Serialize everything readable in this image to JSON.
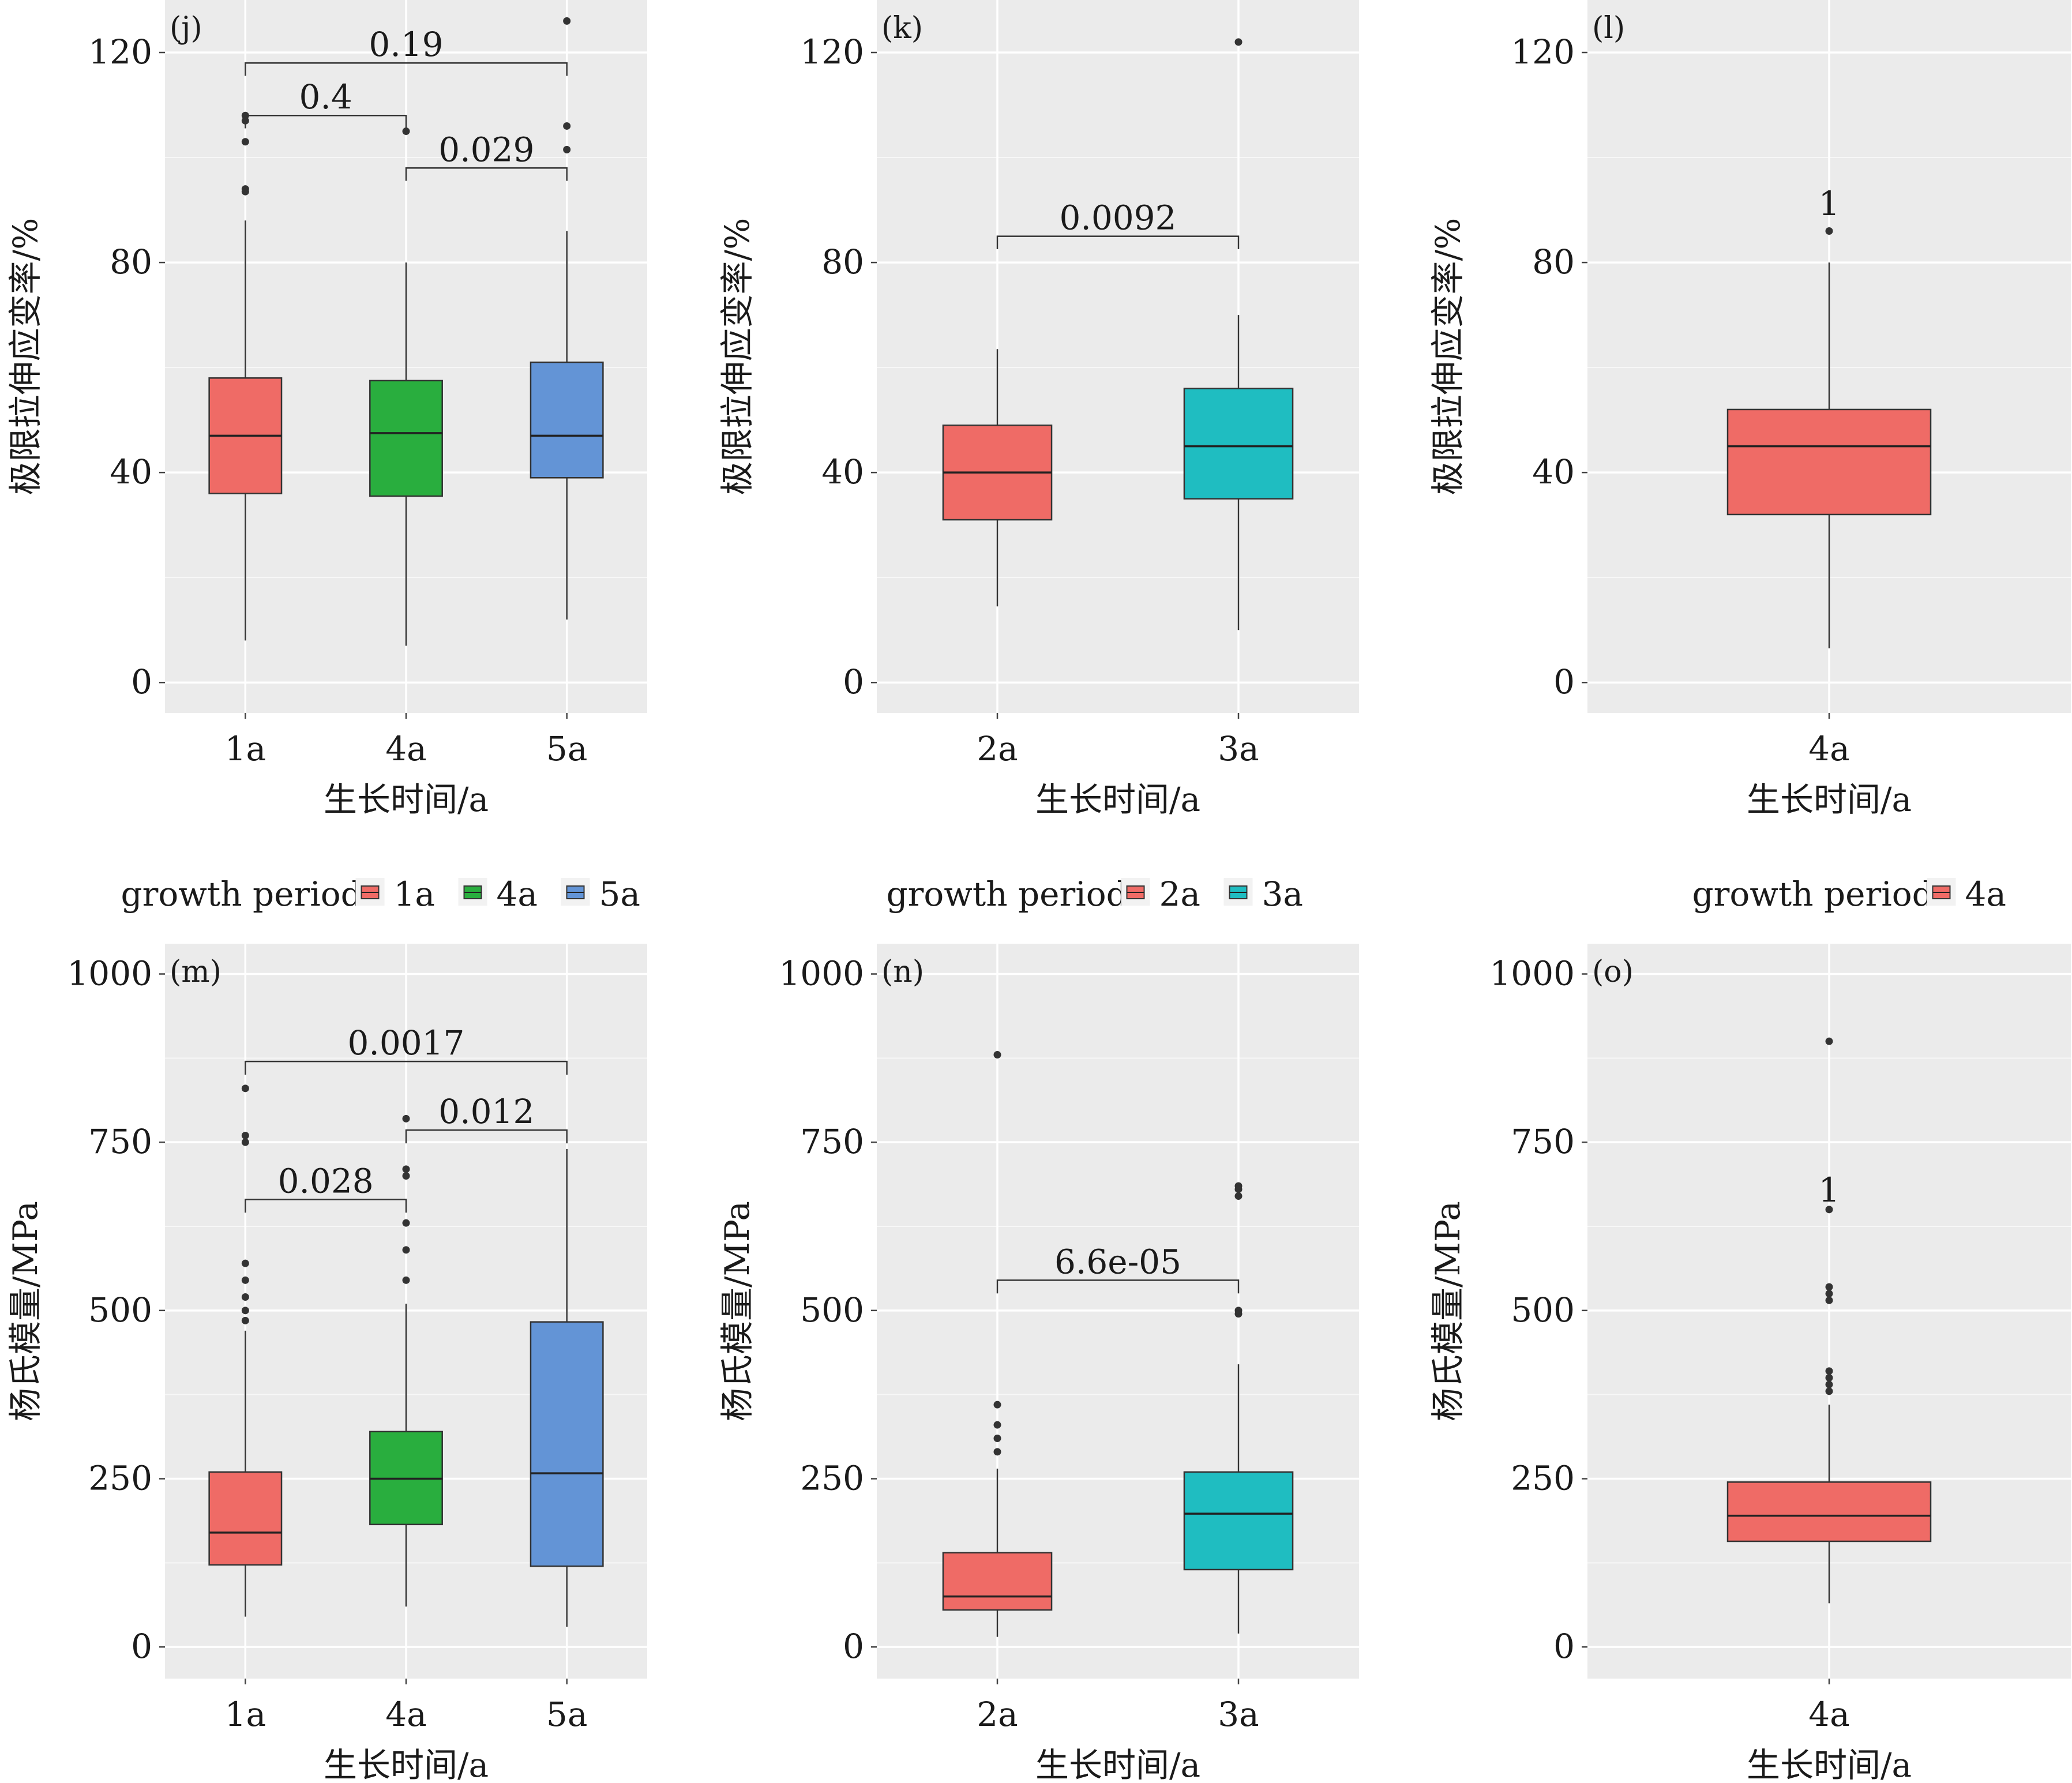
{
  "chart_data": [
    {
      "id": "j",
      "type": "box",
      "tag": "(j)",
      "xlabel": "生长时间/a",
      "ylabel": "极限拉伸应变率/%",
      "ylim": [
        -5.8,
        130
      ],
      "yticks": [
        0,
        40,
        80,
        120
      ],
      "categories": [
        "1a",
        "4a",
        "5a"
      ],
      "fills": [
        "#ef6b66",
        "#29ae3e",
        "#6394d6"
      ],
      "boxes": [
        {
          "q1": 36,
          "median": 47,
          "q3": 58,
          "lo": 8,
          "hi": 88,
          "outliers": [
            93.5,
            94,
            103,
            107,
            108
          ]
        },
        {
          "q1": 35.5,
          "median": 47.5,
          "q3": 57.5,
          "lo": 7,
          "hi": 80,
          "outliers": [
            105
          ]
        },
        {
          "q1": 39,
          "median": 47,
          "q3": 61,
          "lo": 12,
          "hi": 86,
          "outliers": [
            101.5,
            106,
            126
          ]
        }
      ],
      "comparisons": [
        {
          "a": 0,
          "b": 1,
          "label": "0.4",
          "y": 108
        },
        {
          "a": 1,
          "b": 2,
          "label": "0.029",
          "y": 98
        },
        {
          "a": 0,
          "b": 2,
          "label": "0.19",
          "y": 118
        }
      ]
    },
    {
      "id": "k",
      "type": "box",
      "tag": "(k)",
      "xlabel": "生长时间/a",
      "ylabel": "极限拉伸应变率/%",
      "ylim": [
        -5.8,
        130
      ],
      "yticks": [
        0,
        40,
        80,
        120
      ],
      "categories": [
        "2a",
        "3a"
      ],
      "fills": [
        "#ef6b66",
        "#1fbdc1"
      ],
      "boxes": [
        {
          "q1": 31,
          "median": 40,
          "q3": 49,
          "lo": 14.5,
          "hi": 63.5,
          "outliers": []
        },
        {
          "q1": 35,
          "median": 45,
          "q3": 56,
          "lo": 10,
          "hi": 70,
          "outliers": [
            122
          ]
        }
      ],
      "comparisons": [
        {
          "a": 0,
          "b": 1,
          "label": "0.0092",
          "y": 85
        }
      ]
    },
    {
      "id": "l",
      "type": "box",
      "tag": "(l)",
      "xlabel": "生长时间/a",
      "ylabel": "极限拉伸应变率/%",
      "ylim": [
        -5.8,
        130
      ],
      "yticks": [
        0,
        40,
        80,
        120
      ],
      "categories": [
        "4a"
      ],
      "fills": [
        "#ef6b66"
      ],
      "boxes": [
        {
          "q1": 32,
          "median": 45,
          "q3": 52,
          "lo": 6.5,
          "hi": 80,
          "outliers": [
            86
          ]
        }
      ],
      "comparisons": [],
      "annotations": [
        {
          "label": "1",
          "y": 89
        }
      ]
    },
    {
      "id": "m",
      "type": "box",
      "tag": "(m)",
      "xlabel": "生长时间/a",
      "ylabel": "杨氏模量/MPa",
      "ylim": [
        -47,
        1045
      ],
      "yticks": [
        0,
        250,
        500,
        750,
        1000
      ],
      "categories": [
        "1a",
        "4a",
        "5a"
      ],
      "fills": [
        "#ef6b66",
        "#29ae3e",
        "#6394d6"
      ],
      "boxes": [
        {
          "q1": 122,
          "median": 170,
          "q3": 260,
          "lo": 45,
          "hi": 470,
          "outliers": [
            485,
            500,
            520,
            545,
            570,
            750,
            760,
            830
          ]
        },
        {
          "q1": 182,
          "median": 250,
          "q3": 320,
          "lo": 60,
          "hi": 510,
          "outliers": [
            545,
            590,
            630,
            700,
            710,
            785
          ]
        },
        {
          "q1": 120,
          "median": 258,
          "q3": 483,
          "lo": 30,
          "hi": 740,
          "outliers": []
        }
      ],
      "comparisons": [
        {
          "a": 0,
          "b": 1,
          "label": "0.028",
          "y": 665
        },
        {
          "a": 1,
          "b": 2,
          "label": "0.012",
          "y": 768
        },
        {
          "a": 0,
          "b": 2,
          "label": "0.0017",
          "y": 870
        }
      ]
    },
    {
      "id": "n",
      "type": "box",
      "tag": "(n)",
      "xlabel": "生长时间/a",
      "ylabel": "杨氏模量/MPa",
      "ylim": [
        -47,
        1045
      ],
      "yticks": [
        0,
        250,
        500,
        750,
        1000
      ],
      "categories": [
        "2a",
        "3a"
      ],
      "fills": [
        "#ef6b66",
        "#1fbdc1"
      ],
      "boxes": [
        {
          "q1": 55,
          "median": 75,
          "q3": 140,
          "lo": 15,
          "hi": 265,
          "outliers": [
            290,
            310,
            330,
            360,
            880
          ]
        },
        {
          "q1": 115,
          "median": 198,
          "q3": 260,
          "lo": 20,
          "hi": 420,
          "outliers": [
            495,
            500,
            670,
            680,
            685
          ]
        }
      ],
      "comparisons": [
        {
          "a": 0,
          "b": 1,
          "label": "6.6e-05",
          "y": 545
        }
      ]
    },
    {
      "id": "o",
      "type": "box",
      "tag": "(o)",
      "xlabel": "生长时间/a",
      "ylabel": "杨氏模量/MPa",
      "ylim": [
        -47,
        1045
      ],
      "yticks": [
        0,
        250,
        500,
        750,
        1000
      ],
      "categories": [
        "4a"
      ],
      "fills": [
        "#ef6b66"
      ],
      "boxes": [
        {
          "q1": 157,
          "median": 195,
          "q3": 245,
          "lo": 65,
          "hi": 360,
          "outliers": [
            380,
            390,
            400,
            410,
            515,
            525,
            535,
            650,
            900
          ]
        }
      ],
      "comparisons": [],
      "annotations": [
        {
          "label": "1",
          "y": 662
        }
      ]
    }
  ],
  "legends": [
    {
      "title": "growth period",
      "items": [
        {
          "label": "1a",
          "color": "#ef6b66"
        },
        {
          "label": "4a",
          "color": "#29ae3e"
        },
        {
          "label": "5a",
          "color": "#6394d6"
        }
      ]
    },
    {
      "title": "growth period",
      "items": [
        {
          "label": "2a",
          "color": "#ef6b66"
        },
        {
          "label": "3a",
          "color": "#1fbdc1"
        }
      ]
    },
    {
      "title": "growth period",
      "items": [
        {
          "label": "4a",
          "color": "#ef6b66"
        }
      ]
    }
  ]
}
